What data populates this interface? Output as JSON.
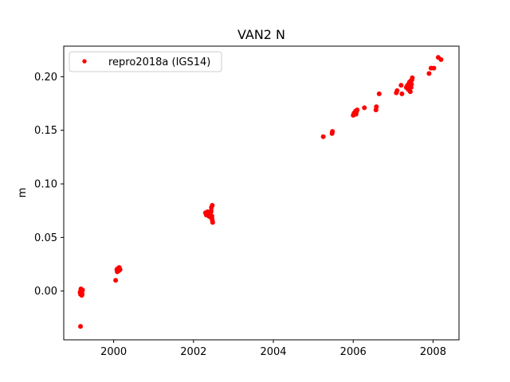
{
  "chart_data": {
    "type": "scatter",
    "title": "VAN2 N",
    "xlabel": "",
    "ylabel": "m",
    "xlim": [
      1998.75,
      2008.65
    ],
    "ylim": [
      -0.0455,
      0.2285
    ],
    "xticks": [
      2000,
      2002,
      2004,
      2006,
      2008
    ],
    "yticks": [
      0.0,
      0.05,
      0.1,
      0.15,
      0.2
    ],
    "ytick_labels": [
      "0.00",
      "0.05",
      "0.10",
      "0.15",
      "0.20"
    ],
    "grid": false,
    "legend_position": "top-left",
    "series": [
      {
        "name": "repro2018a (IGS14)",
        "color": "#ff0000",
        "marker": "circle",
        "x": [
          1999.17,
          1999.18,
          1999.19,
          1999.2,
          1999.21,
          1999.16,
          1999.18,
          1999.2,
          1999.22,
          1999.19,
          1999.21,
          1999.17,
          2000.05,
          2000.08,
          2000.1,
          2000.12,
          2000.14,
          2000.16,
          2000.09,
          2000.11,
          2000.13,
          2002.3,
          2002.32,
          2002.35,
          2002.38,
          2002.4,
          2002.42,
          2002.44,
          2002.46,
          2002.33,
          2002.37,
          2002.41,
          2002.45,
          2002.47,
          2002.48,
          2002.47,
          2002.46,
          2002.44,
          2005.25,
          2005.47,
          2005.48,
          2006.0,
          2006.02,
          2006.04,
          2006.06,
          2006.08,
          2006.1,
          2006.03,
          2006.07,
          2006.05,
          2006.28,
          2006.57,
          2006.58,
          2006.65,
          2007.08,
          2007.1,
          2007.2,
          2007.22,
          2007.33,
          2007.36,
          2007.38,
          2007.4,
          2007.42,
          2007.44,
          2007.46,
          2007.48,
          2007.37,
          2007.41,
          2007.45,
          2007.47,
          2007.43,
          2007.9,
          2007.95,
          2008.02,
          2008.13,
          2008.2
        ],
        "y": [
          -0.033,
          0.001,
          -0.002,
          0.0,
          -0.003,
          -0.001,
          0.002,
          -0.004,
          0.001,
          -0.002,
          0.0,
          -0.003,
          0.01,
          0.02,
          0.021,
          0.019,
          0.022,
          0.02,
          0.018,
          0.021,
          0.019,
          0.073,
          0.071,
          0.074,
          0.07,
          0.072,
          0.069,
          0.075,
          0.068,
          0.072,
          0.073,
          0.071,
          0.078,
          0.08,
          0.064,
          0.066,
          0.07,
          0.074,
          0.144,
          0.147,
          0.149,
          0.164,
          0.166,
          0.165,
          0.168,
          0.167,
          0.169,
          0.166,
          0.165,
          0.167,
          0.171,
          0.169,
          0.172,
          0.184,
          0.185,
          0.187,
          0.192,
          0.184,
          0.19,
          0.192,
          0.188,
          0.194,
          0.191,
          0.196,
          0.193,
          0.199,
          0.189,
          0.195,
          0.19,
          0.197,
          0.186,
          0.203,
          0.208,
          0.208,
          0.218,
          0.216
        ]
      }
    ]
  }
}
